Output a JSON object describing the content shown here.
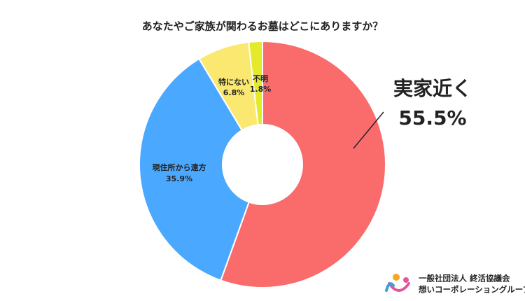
{
  "chart_data": {
    "type": "pie",
    "title": "あなたやご家族が関わるお墓はどこにありますか？",
    "categories": [
      "実家近く",
      "現住所から遠方",
      "特にない",
      "不明"
    ],
    "values": [
      55.5,
      35.9,
      6.8,
      1.8
    ],
    "value_labels": [
      "55.5%",
      "35.9%",
      "6.8%",
      "1.8%"
    ],
    "colors": [
      "#fa6b6b",
      "#4aa8ff",
      "#fbe870",
      "#e4ea2a"
    ]
  },
  "logo": {
    "line1": "一般社団法人 終活協議会",
    "line2": "想いコーポレーショングループ"
  }
}
